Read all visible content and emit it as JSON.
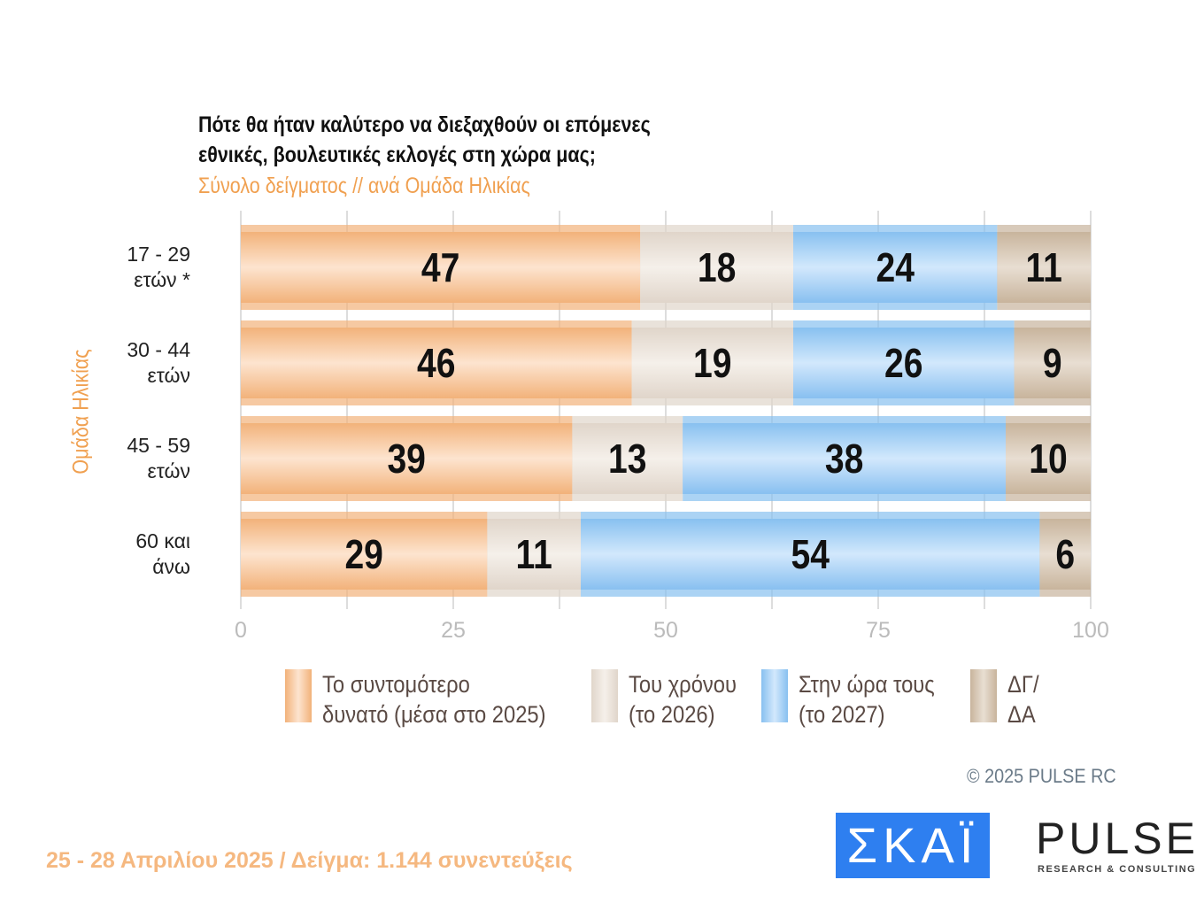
{
  "chart_data": {
    "type": "bar",
    "orientation": "horizontal",
    "stacked": true,
    "title": "Πότε θα ήταν καλύτερο να διεξαχθούν οι επόμενες εθνικές, βουλευτικές εκλογές στη χώρα μας;",
    "title_lines": [
      "Πότε θα ήταν καλύτερο να διεξαχθούν οι επόμενες",
      "εθνικές, βουλευτικές εκλογές στη χώρα μας;"
    ],
    "subtitle": "Σύνολο δείγματος // ανά Ομάδα Ηλικίας",
    "ylabel": "Ομάδα Ηλικίας",
    "categories": [
      [
        "17 - 29",
        "ετών *"
      ],
      [
        "30 - 44",
        "ετών"
      ],
      [
        "45 - 59",
        "ετών"
      ],
      [
        "60 και",
        "άνω"
      ]
    ],
    "xlim": [
      0,
      100
    ],
    "xticks": [
      0,
      25,
      50,
      75,
      100
    ],
    "grid": true,
    "series": [
      {
        "name": "Το συντομότερο δυνατό (μέσα στο 2025)",
        "lines": [
          "Το συντομότερο",
          "δυνατό (μέσα στο 2025)"
        ],
        "values": [
          47,
          46,
          39,
          29
        ],
        "color": "#f2b27a",
        "light": "#fde4cf"
      },
      {
        "name": "Του χρόνου (το 2026)",
        "lines": [
          "Του χρόνου",
          "(το 2026)"
        ],
        "values": [
          18,
          19,
          13,
          11
        ],
        "color": "#e0d5ca",
        "light": "#f5f0ea"
      },
      {
        "name": "Στην ώρα τους (το 2027)",
        "lines": [
          "Στην ώρα τους",
          "(το 2027)"
        ],
        "values": [
          24,
          26,
          38,
          54
        ],
        "color": "#88c0f0",
        "light": "#d2e8fc"
      },
      {
        "name": "ΔΓ/ΔΑ",
        "lines": [
          "ΔΓ/",
          "ΔΑ"
        ],
        "values": [
          11,
          9,
          10,
          6
        ],
        "color": "#c8b49c",
        "light": "#e8ded2"
      }
    ],
    "legend": "bottom"
  },
  "copyright": "©  2025  PULSE RC",
  "footer": "25 - 28 Απριλίου 2025  /  Δείγμα:  1.144 συνεντεύξεις",
  "logos": {
    "skai": "ΣΚΑΪ",
    "pulse": "PULSE",
    "pulse_sub": "RESEARCH & CONSULTING"
  }
}
